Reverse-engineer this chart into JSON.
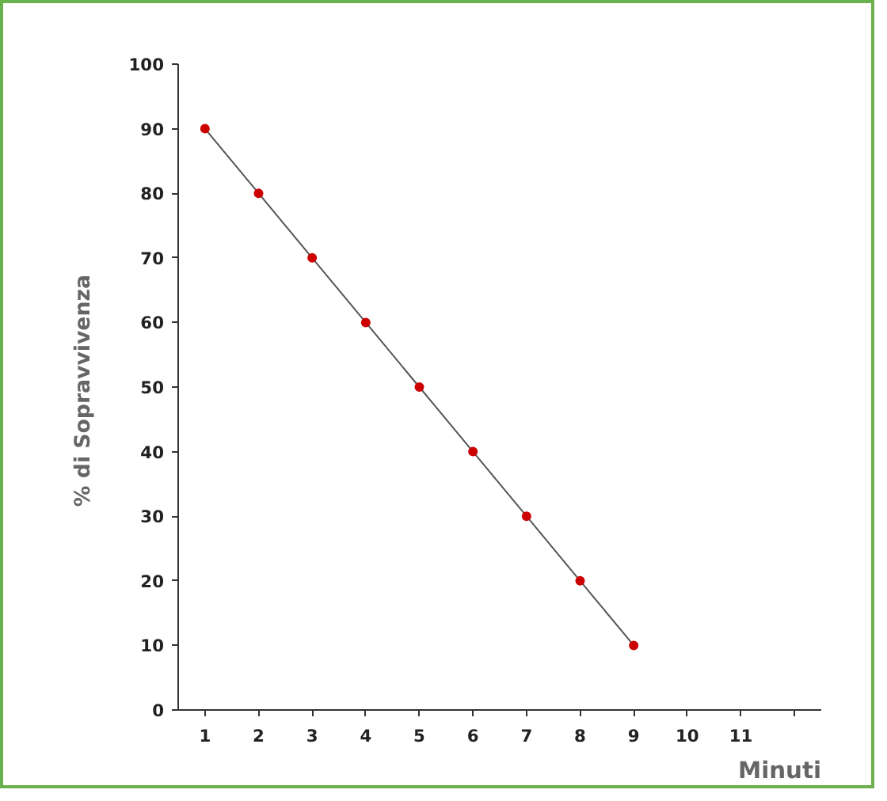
{
  "chart_data": {
    "type": "line",
    "xlabel": "Minuti",
    "ylabel": "% di  Sopravvivenza",
    "categories": [
      "1",
      "2",
      "3",
      "4",
      "5",
      "6",
      "7",
      "8",
      "9",
      "10",
      "11",
      null
    ],
    "series": [
      {
        "color": "#cc0000",
        "values": [
          90,
          80,
          70,
          60,
          50,
          40,
          30,
          20,
          10,
          null,
          null,
          null
        ]
      }
    ],
    "ylim": [
      0,
      100
    ],
    "yticks": [
      0,
      10,
      20,
      30,
      40,
      50,
      60,
      70,
      80,
      90,
      100
    ],
    "grid": false,
    "marker": "circle",
    "line_style": "solid"
  }
}
